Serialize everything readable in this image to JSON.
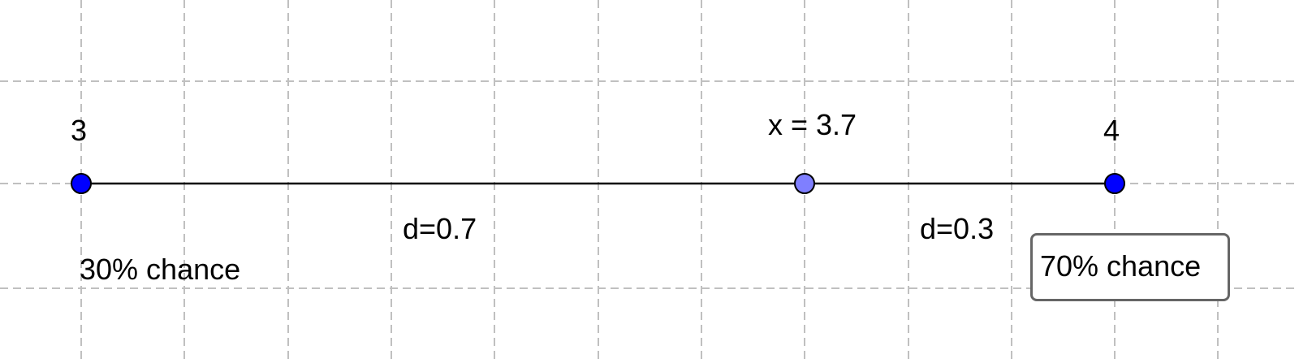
{
  "number_line": {
    "left_endpoint": {
      "label": "3",
      "value": 3
    },
    "right_endpoint": {
      "label": "4",
      "value": 4
    },
    "point": {
      "label": "x = 3.7",
      "value": 3.7
    },
    "distance_left": "d=0.7",
    "distance_right": "d=0.3",
    "chance_left": "30% chance",
    "chance_right": "70% chance"
  },
  "colors": {
    "endpoint": "#0000ff",
    "point": "#7f7fff",
    "segment": "#000000",
    "grid": "#c0c0c0",
    "box_border": "#666666"
  }
}
